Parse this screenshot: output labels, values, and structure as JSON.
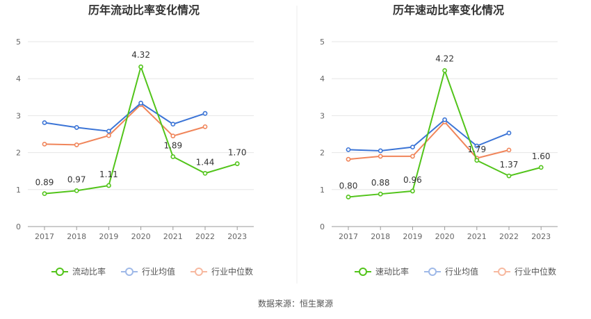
{
  "source": "数据来源：恒生聚源",
  "chart_data": [
    {
      "type": "line",
      "title": "历年流动比率变化情况",
      "categories": [
        "2017",
        "2018",
        "2019",
        "2020",
        "2021",
        "2022",
        "2023"
      ],
      "ylim": [
        0,
        5
      ],
      "yticks": [
        "0",
        "1",
        "2",
        "3",
        "4",
        "5"
      ],
      "grid": true,
      "legend_position": "bottom",
      "series": [
        {
          "name": "流动比率",
          "color": "#52c41a",
          "values": [
            0.89,
            0.97,
            1.11,
            4.32,
            1.89,
            1.44,
            1.7
          ],
          "labels": [
            "0.89",
            "0.97",
            "1.11",
            "4.32",
            "1.89",
            "1.44",
            "1.70"
          ]
        },
        {
          "name": "行业均值",
          "color": "#3b74d6",
          "values": [
            2.81,
            2.68,
            2.58,
            3.34,
            2.77,
            3.06,
            null
          ]
        },
        {
          "name": "行业中位数",
          "color": "#f0855a",
          "values": [
            2.23,
            2.21,
            2.46,
            3.3,
            2.45,
            2.7,
            null
          ]
        }
      ]
    },
    {
      "type": "line",
      "title": "历年速动比率变化情况",
      "categories": [
        "2017",
        "2018",
        "2019",
        "2020",
        "2021",
        "2022",
        "2023"
      ],
      "ylim": [
        0,
        5
      ],
      "yticks": [
        "0",
        "1",
        "2",
        "3",
        "4",
        "5"
      ],
      "grid": true,
      "legend_position": "bottom",
      "series": [
        {
          "name": "速动比率",
          "color": "#52c41a",
          "values": [
            0.8,
            0.88,
            0.96,
            4.22,
            1.79,
            1.37,
            1.6
          ],
          "labels": [
            "0.80",
            "0.88",
            "0.96",
            "4.22",
            "1.79",
            "1.37",
            "1.60"
          ]
        },
        {
          "name": "行业均值",
          "color": "#3b74d6",
          "values": [
            2.08,
            2.05,
            2.15,
            2.89,
            2.18,
            2.53,
            null
          ]
        },
        {
          "name": "行业中位数",
          "color": "#f0855a",
          "values": [
            1.82,
            1.9,
            1.9,
            2.83,
            1.85,
            2.07,
            null
          ]
        }
      ]
    }
  ]
}
